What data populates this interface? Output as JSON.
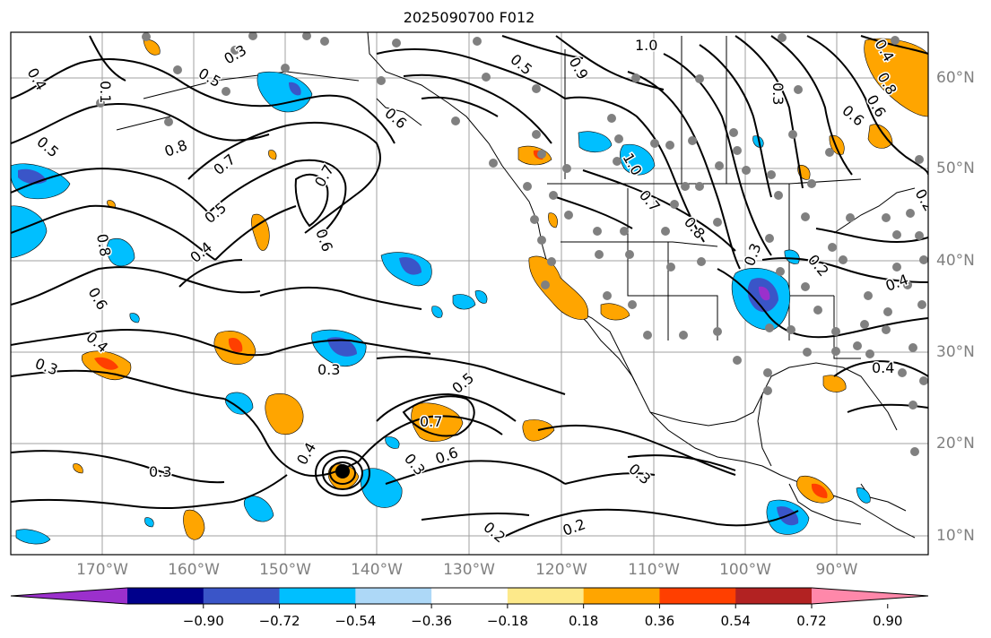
{
  "title": "2025090700 F012",
  "lat_labels": [
    "60°N",
    "50°N",
    "40°N",
    "30°N",
    "20°N",
    "10°N"
  ],
  "lon_labels": [
    "170°W",
    "160°W",
    "150°W",
    "140°W",
    "130°W",
    "120°W",
    "110°W",
    "100°W",
    "90°W"
  ],
  "colorbar": {
    "ticks": [
      "−0.90",
      "−0.72",
      "−0.54",
      "−0.36",
      "−0.18",
      "0.18",
      "0.36",
      "0.54",
      "0.72",
      "0.90"
    ],
    "colors": [
      "#9b30cc",
      "#00008b",
      "#3a55c8",
      "#00bfff",
      "#add8f7",
      "#ffffff",
      "#fde98a",
      "#ffa500",
      "#ff3f00",
      "#b22222",
      "#ff88aa"
    ]
  },
  "contour_labels": [
    {
      "text": "0.4"
    },
    {
      "text": "0.1"
    },
    {
      "text": "0.5"
    },
    {
      "text": "0.8"
    },
    {
      "text": "0.3"
    },
    {
      "text": "0.5"
    },
    {
      "text": "0.6"
    },
    {
      "text": "1.0"
    },
    {
      "text": "0.5"
    },
    {
      "text": "0.9"
    },
    {
      "text": "0.8"
    },
    {
      "text": "0.6"
    },
    {
      "text": "0.7"
    },
    {
      "text": "0.7"
    },
    {
      "text": "0.5"
    },
    {
      "text": "0.4"
    },
    {
      "text": "0.6"
    },
    {
      "text": "0.8"
    },
    {
      "text": "0.6"
    },
    {
      "text": "0.4"
    },
    {
      "text": "0.3"
    },
    {
      "text": "0.3"
    },
    {
      "text": "0.5"
    },
    {
      "text": "0.7"
    },
    {
      "text": "0.6"
    },
    {
      "text": "0.3"
    },
    {
      "text": "0.4"
    },
    {
      "text": "0.3"
    },
    {
      "text": "0.2"
    },
    {
      "text": "0.2"
    },
    {
      "text": "0.3"
    },
    {
      "text": "1.0"
    },
    {
      "text": "0.7"
    },
    {
      "text": "0.8"
    },
    {
      "text": "0.3"
    },
    {
      "text": "0.2"
    },
    {
      "text": "0.4"
    },
    {
      "text": "0.4"
    },
    {
      "text": "0.3"
    },
    {
      "text": "0.6"
    },
    {
      "text": "0.2"
    },
    {
      "text": "0.4"
    }
  ]
}
